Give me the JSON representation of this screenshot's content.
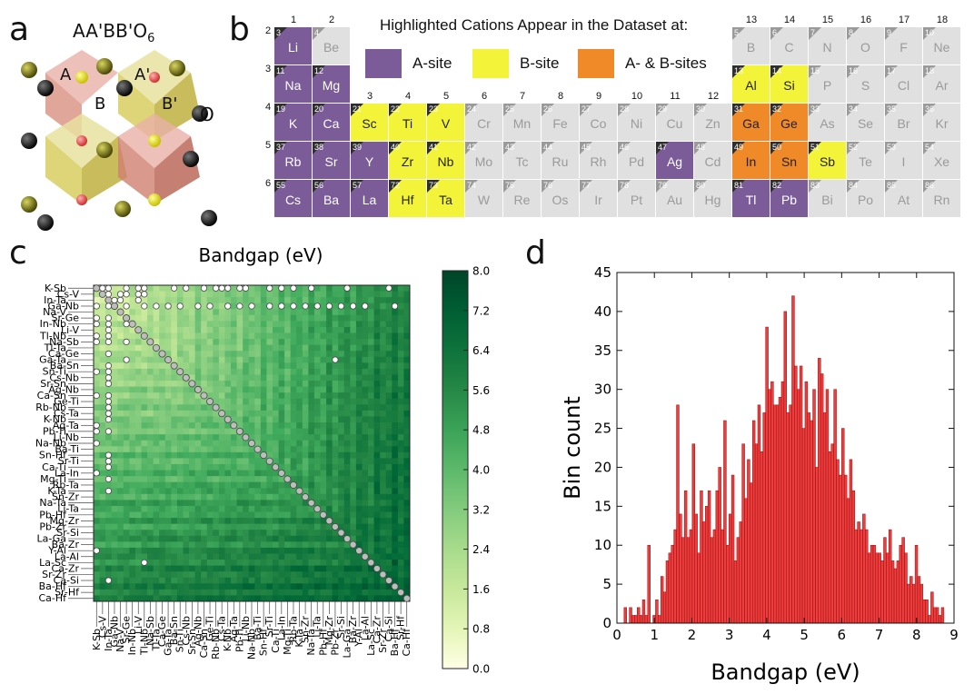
{
  "panels": {
    "a": "a",
    "b": "b",
    "c": "c",
    "d": "d"
  },
  "crystal": {
    "title_main": "AA'BB'O",
    "title_sub": "6",
    "labels": [
      "A",
      "A'",
      "B",
      "B'",
      "O"
    ]
  },
  "ptable": {
    "legend_title": "Highlighted Cations Appear in the Dataset at:",
    "legend": [
      {
        "label": "A-site",
        "color": "#7b5c98"
      },
      {
        "label": "B-site",
        "color": "#f3f33a"
      },
      {
        "label": "A- & B-sites",
        "color": "#f08a28"
      }
    ],
    "colors": {
      "A": "#7b5c98",
      "B": "#f3f33a",
      "AB": "#f08a28",
      "none": "#e0e0e0"
    },
    "elements": [
      {
        "n": "3",
        "s": "Li",
        "p": 2,
        "g": 1,
        "t": "A"
      },
      {
        "n": "4",
        "s": "Be",
        "p": 2,
        "g": 2,
        "t": "none"
      },
      {
        "n": "5",
        "s": "B",
        "p": 2,
        "g": 13,
        "t": "none"
      },
      {
        "n": "6",
        "s": "C",
        "p": 2,
        "g": 14,
        "t": "none"
      },
      {
        "n": "7",
        "s": "N",
        "p": 2,
        "g": 15,
        "t": "none"
      },
      {
        "n": "8",
        "s": "O",
        "p": 2,
        "g": 16,
        "t": "none"
      },
      {
        "n": "9",
        "s": "F",
        "p": 2,
        "g": 17,
        "t": "none"
      },
      {
        "n": "10",
        "s": "Ne",
        "p": 2,
        "g": 18,
        "t": "none"
      },
      {
        "n": "11",
        "s": "Na",
        "p": 3,
        "g": 1,
        "t": "A"
      },
      {
        "n": "12",
        "s": "Mg",
        "p": 3,
        "g": 2,
        "t": "A"
      },
      {
        "n": "13",
        "s": "Al",
        "p": 3,
        "g": 13,
        "t": "B"
      },
      {
        "n": "14",
        "s": "Si",
        "p": 3,
        "g": 14,
        "t": "B"
      },
      {
        "n": "15",
        "s": "P",
        "p": 3,
        "g": 15,
        "t": "none"
      },
      {
        "n": "16",
        "s": "S",
        "p": 3,
        "g": 16,
        "t": "none"
      },
      {
        "n": "17",
        "s": "Cl",
        "p": 3,
        "g": 17,
        "t": "none"
      },
      {
        "n": "18",
        "s": "Ar",
        "p": 3,
        "g": 18,
        "t": "none"
      },
      {
        "n": "19",
        "s": "K",
        "p": 4,
        "g": 1,
        "t": "A"
      },
      {
        "n": "20",
        "s": "Ca",
        "p": 4,
        "g": 2,
        "t": "A"
      },
      {
        "n": "21",
        "s": "Sc",
        "p": 4,
        "g": 3,
        "t": "B"
      },
      {
        "n": "22",
        "s": "Ti",
        "p": 4,
        "g": 4,
        "t": "B"
      },
      {
        "n": "23",
        "s": "V",
        "p": 4,
        "g": 5,
        "t": "B"
      },
      {
        "n": "24",
        "s": "Cr",
        "p": 4,
        "g": 6,
        "t": "none"
      },
      {
        "n": "25",
        "s": "Mn",
        "p": 4,
        "g": 7,
        "t": "none"
      },
      {
        "n": "26",
        "s": "Fe",
        "p": 4,
        "g": 8,
        "t": "none"
      },
      {
        "n": "27",
        "s": "Co",
        "p": 4,
        "g": 9,
        "t": "none"
      },
      {
        "n": "28",
        "s": "Ni",
        "p": 4,
        "g": 10,
        "t": "none"
      },
      {
        "n": "29",
        "s": "Cu",
        "p": 4,
        "g": 11,
        "t": "none"
      },
      {
        "n": "30",
        "s": "Zn",
        "p": 4,
        "g": 12,
        "t": "none"
      },
      {
        "n": "31",
        "s": "Ga",
        "p": 4,
        "g": 13,
        "t": "AB"
      },
      {
        "n": "32",
        "s": "Ge",
        "p": 4,
        "g": 14,
        "t": "AB"
      },
      {
        "n": "33",
        "s": "As",
        "p": 4,
        "g": 15,
        "t": "none"
      },
      {
        "n": "34",
        "s": "Se",
        "p": 4,
        "g": 16,
        "t": "none"
      },
      {
        "n": "35",
        "s": "Br",
        "p": 4,
        "g": 17,
        "t": "none"
      },
      {
        "n": "36",
        "s": "Kr",
        "p": 4,
        "g": 18,
        "t": "none"
      },
      {
        "n": "37",
        "s": "Rb",
        "p": 5,
        "g": 1,
        "t": "A"
      },
      {
        "n": "38",
        "s": "Sr",
        "p": 5,
        "g": 2,
        "t": "A"
      },
      {
        "n": "39",
        "s": "Y",
        "p": 5,
        "g": 3,
        "t": "A"
      },
      {
        "n": "40",
        "s": "Zr",
        "p": 5,
        "g": 4,
        "t": "B"
      },
      {
        "n": "41",
        "s": "Nb",
        "p": 5,
        "g": 5,
        "t": "B"
      },
      {
        "n": "42",
        "s": "Mo",
        "p": 5,
        "g": 6,
        "t": "none"
      },
      {
        "n": "43",
        "s": "Tc",
        "p": 5,
        "g": 7,
        "t": "none"
      },
      {
        "n": "44",
        "s": "Ru",
        "p": 5,
        "g": 8,
        "t": "none"
      },
      {
        "n": "45",
        "s": "Rh",
        "p": 5,
        "g": 9,
        "t": "none"
      },
      {
        "n": "46",
        "s": "Pd",
        "p": 5,
        "g": 10,
        "t": "none"
      },
      {
        "n": "47",
        "s": "Ag",
        "p": 5,
        "g": 11,
        "t": "A"
      },
      {
        "n": "48",
        "s": "Cd",
        "p": 5,
        "g": 12,
        "t": "none"
      },
      {
        "n": "49",
        "s": "In",
        "p": 5,
        "g": 13,
        "t": "AB"
      },
      {
        "n": "50",
        "s": "Sn",
        "p": 5,
        "g": 14,
        "t": "AB"
      },
      {
        "n": "51",
        "s": "Sb",
        "p": 5,
        "g": 15,
        "t": "B"
      },
      {
        "n": "52",
        "s": "Te",
        "p": 5,
        "g": 16,
        "t": "none"
      },
      {
        "n": "53",
        "s": "I",
        "p": 5,
        "g": 17,
        "t": "none"
      },
      {
        "n": "54",
        "s": "Xe",
        "p": 5,
        "g": 18,
        "t": "none"
      },
      {
        "n": "55",
        "s": "Cs",
        "p": 6,
        "g": 1,
        "t": "A"
      },
      {
        "n": "56",
        "s": "Ba",
        "p": 6,
        "g": 2,
        "t": "A"
      },
      {
        "n": "57",
        "s": "La",
        "p": 6,
        "g": 3,
        "t": "A"
      },
      {
        "n": "72",
        "s": "Hf",
        "p": 6,
        "g": 4,
        "t": "B"
      },
      {
        "n": "73",
        "s": "Ta",
        "p": 6,
        "g": 5,
        "t": "B"
      },
      {
        "n": "74",
        "s": "W",
        "p": 6,
        "g": 6,
        "t": "none"
      },
      {
        "n": "75",
        "s": "Re",
        "p": 6,
        "g": 7,
        "t": "none"
      },
      {
        "n": "76",
        "s": "Os",
        "p": 6,
        "g": 8,
        "t": "none"
      },
      {
        "n": "77",
        "s": "Ir",
        "p": 6,
        "g": 9,
        "t": "none"
      },
      {
        "n": "78",
        "s": "Pt",
        "p": 6,
        "g": 10,
        "t": "none"
      },
      {
        "n": "79",
        "s": "Au",
        "p": 6,
        "g": 11,
        "t": "none"
      },
      {
        "n": "80",
        "s": "Hg",
        "p": 6,
        "g": 12,
        "t": "none"
      },
      {
        "n": "81",
        "s": "Tl",
        "p": 6,
        "g": 13,
        "t": "A"
      },
      {
        "n": "82",
        "s": "Pb",
        "p": 6,
        "g": 14,
        "t": "A"
      },
      {
        "n": "83",
        "s": "Bi",
        "p": 6,
        "g": 15,
        "t": "none"
      },
      {
        "n": "84",
        "s": "Po",
        "p": 6,
        "g": 16,
        "t": "none"
      },
      {
        "n": "85",
        "s": "At",
        "p": 6,
        "g": 17,
        "t": "none"
      },
      {
        "n": "86",
        "s": "Rn",
        "p": 6,
        "g": 18,
        "t": "none"
      }
    ],
    "group_labels": [
      {
        "g": 1,
        "label": "1"
      },
      {
        "g": 2,
        "label": "2"
      },
      {
        "g": 3,
        "label": "3"
      },
      {
        "g": 4,
        "label": "4"
      },
      {
        "g": 5,
        "label": "5"
      },
      {
        "g": 6,
        "label": "6"
      },
      {
        "g": 7,
        "label": "7"
      },
      {
        "g": 8,
        "label": "8"
      },
      {
        "g": 9,
        "label": "9"
      },
      {
        "g": 10,
        "label": "10"
      },
      {
        "g": 11,
        "label": "11"
      },
      {
        "g": 12,
        "label": "12"
      },
      {
        "g": 13,
        "label": "13"
      },
      {
        "g": 14,
        "label": "14"
      },
      {
        "g": 15,
        "label": "15"
      },
      {
        "g": 16,
        "label": "16"
      },
      {
        "g": 17,
        "label": "17"
      },
      {
        "g": 18,
        "label": "18"
      }
    ],
    "period_labels": [
      {
        "p": 2,
        "label": "2"
      },
      {
        "p": 3,
        "label": "3"
      },
      {
        "p": 4,
        "label": "4"
      },
      {
        "p": 5,
        "label": "5"
      },
      {
        "p": 6,
        "label": "6"
      }
    ]
  },
  "chart_data": [
    {
      "type": "heatmap",
      "title": "Bandgap (eV)",
      "row_labels": [
        "K-Sb",
        "Cs-V",
        "In-Ta",
        "Ga-Nb",
        "Na-V",
        "Sr-Ge",
        "In-Nb",
        "Li-V",
        "Tl-Nb",
        "Na-Sb",
        "Tl-Ta",
        "Ca-Ge",
        "Ga-Ta",
        "Ba-Sn",
        "Sn-Ti",
        "Cs-Nb",
        "Sr-Sn",
        "Ag-Nb",
        "Ca-Sn",
        "Ge-Ti",
        "Rb-Nb",
        "Cs-Ta",
        "K-Nb",
        "Ag-Ta",
        "Pb-Ti",
        "Li-Nb",
        "Na-Nb",
        "Ba-Ti",
        "Sn-Hf",
        "Sr-Ti",
        "Ca-Ti",
        "La-In",
        "Mg-Ti",
        "Rb-Ta",
        "K-Ta",
        "Sn-Zr",
        "Na-Ta",
        "Li-Ta",
        "Pb-Hf",
        "Mg-Zr",
        "Pb-Zr",
        "Sr-Si",
        "La-Ga",
        "Ba-Zr",
        "Y-Al",
        "La-Al",
        "La-Sc",
        "Ca-Zr",
        "Sr-Zr",
        "Ca-Si",
        "Ba-Hf",
        "Sr-Hf",
        "Ca-Hf"
      ],
      "col_labels": [
        "K-Sb",
        "Cs-V",
        "In-Ta",
        "Ga-Nb",
        "Na-V",
        "Sr-Ge",
        "In-Nb",
        "Li-V",
        "Tl-Nb",
        "Na-Sb",
        "Tl-Ta",
        "Ca-Ge",
        "Ga-Ta",
        "Ba-Sn",
        "Sn-Ti",
        "Cs-Nb",
        "Sr-Sn",
        "Ag-Nb",
        "Ca-Sn",
        "Ge-Ti",
        "Rb-Nb",
        "Cs-Ta",
        "K-Nb",
        "Ag-Ta",
        "Pb-Ti",
        "Li-Nb",
        "Na-Nb",
        "Ba-Ti",
        "Sn-Hf",
        "Sr-Ti",
        "Ca-Ti",
        "La-In",
        "Mg-Ti",
        "Rb-Ta",
        "K-Ta",
        "Sn-Zr",
        "Na-Ta",
        "Li-Ta",
        "Pb-Hf",
        "Mg-Zr",
        "Pb-Zr",
        "Sr-Si",
        "La-Ga",
        "Ba-Zr",
        "Y-Al",
        "La-Al",
        "La-Sc",
        "Ca-Zr",
        "Sr-Zr",
        "Ca-Si",
        "Ba-Hf",
        "Sr-Hf",
        "Ca-Hf"
      ],
      "colorbar": {
        "min": 0.0,
        "max": 8.0,
        "ticks": [
          "8.0",
          "7.2",
          "6.4",
          "5.6",
          "4.8",
          "4.0",
          "3.2",
          "2.4",
          "1.6",
          "0.8",
          "0.0"
        ],
        "colormap": "Greens"
      },
      "markers": "circles mark selected pair combinations; diagonal fully marked"
    },
    {
      "type": "bar",
      "xlabel": "Bandgap (eV)",
      "ylabel": "Bin count",
      "xlim": [
        0,
        9
      ],
      "ylim": [
        0,
        45
      ],
      "xticks": [
        "0",
        "1",
        "2",
        "3",
        "4",
        "5",
        "6",
        "7",
        "8",
        "9"
      ],
      "yticks": [
        "0",
        "5",
        "10",
        "15",
        "20",
        "25",
        "30",
        "35",
        "40",
        "45"
      ],
      "bin_width": 0.07,
      "bar_color": "#f03c3c",
      "values": [
        0,
        2,
        0,
        2,
        1,
        1,
        2,
        1,
        3,
        1,
        10,
        0,
        1,
        3,
        1,
        6,
        4,
        8,
        9,
        10,
        12,
        28,
        14,
        11,
        17,
        11,
        12,
        23,
        14,
        9,
        17,
        13,
        15,
        17,
        11,
        12,
        17,
        20,
        12,
        26,
        10,
        14,
        19,
        8,
        11,
        13,
        23,
        16,
        21,
        18,
        26,
        23,
        28,
        22,
        27,
        38,
        30,
        31,
        28,
        28,
        29,
        31,
        40,
        27,
        28,
        42,
        33,
        30,
        33,
        25,
        31,
        27,
        26,
        30,
        20,
        34,
        32,
        27,
        30,
        22,
        23,
        30,
        21,
        19,
        25,
        19,
        16,
        21,
        17,
        12,
        13,
        12,
        14,
        12,
        9,
        10,
        10,
        9,
        9,
        8,
        11,
        9,
        12,
        8,
        7,
        8,
        10,
        11,
        9,
        5,
        6,
        5,
        10,
        6,
        5,
        3,
        3,
        1,
        4,
        2,
        2,
        1,
        2
      ]
    }
  ]
}
